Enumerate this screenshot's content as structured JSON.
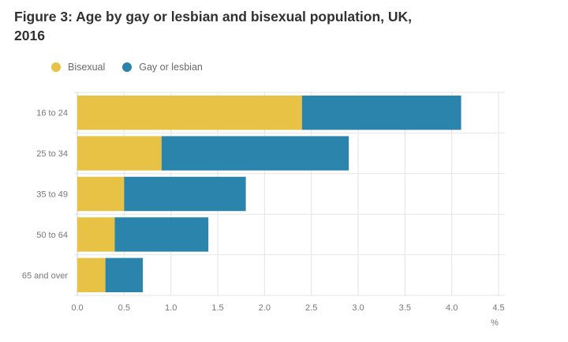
{
  "page_title": "Figure 3: Age by gay or lesbian and bisexual population, UK, 2016",
  "chart_data": {
    "type": "bar",
    "orientation": "horizontal",
    "stacked": true,
    "title": "Figure 3: Age by gay or lesbian and bisexual population, UK, 2016",
    "categories": [
      "16 to 24",
      "25 to 34",
      "35 to 49",
      "50 to 64",
      "65 and over"
    ],
    "series": [
      {
        "name": "Bisexual",
        "color": "#e8c244",
        "values": [
          2.4,
          0.9,
          0.5,
          0.4,
          0.3
        ]
      },
      {
        "name": "Gay or lesbian",
        "color": "#2a84ac",
        "values": [
          1.7,
          2.0,
          1.3,
          1.0,
          0.4
        ]
      }
    ],
    "xlim": [
      0,
      4.5
    ],
    "xticks": [
      "0.0",
      "0.5",
      "1.0",
      "1.5",
      "2.0",
      "2.5",
      "3.0",
      "3.5",
      "4.0",
      "4.5"
    ],
    "xlabel": "%",
    "ylabel": "",
    "legend_position": "top-left",
    "grid": true
  }
}
